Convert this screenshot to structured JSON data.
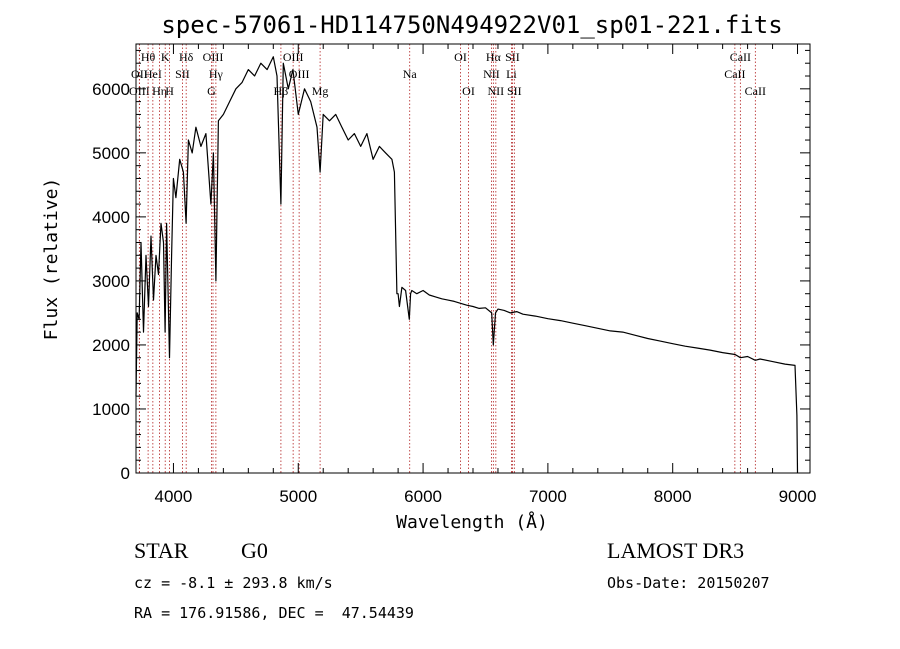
{
  "chart_data": {
    "type": "line",
    "title": "spec-57061-HD114750N494922V01_sp01-221.fits",
    "xlabel": "Wavelength (Å)",
    "ylabel": "Flux (relative)",
    "xlim": [
      3700,
      9100
    ],
    "ylim": [
      0,
      6700
    ],
    "xticks": [
      4000,
      5000,
      6000,
      7000,
      8000,
      9000
    ],
    "yticks": [
      0,
      1000,
      2000,
      3000,
      4000,
      5000,
      6000
    ],
    "series": [
      {
        "name": "spectrum",
        "x": [
          3700,
          3710,
          3725,
          3740,
          3760,
          3780,
          3800,
          3820,
          3840,
          3860,
          3880,
          3900,
          3920,
          3933,
          3945,
          3968,
          3985,
          4000,
          4020,
          4050,
          4080,
          4101,
          4120,
          4150,
          4180,
          4220,
          4260,
          4300,
          4320,
          4340,
          4360,
          4400,
          4450,
          4500,
          4550,
          4600,
          4650,
          4700,
          4750,
          4800,
          4830,
          4861,
          4880,
          4920,
          4957,
          5000,
          5050,
          5100,
          5150,
          5175,
          5200,
          5250,
          5300,
          5350,
          5400,
          5450,
          5500,
          5550,
          5600,
          5650,
          5700,
          5750,
          5770,
          5790,
          5800,
          5810,
          5830,
          5860,
          5890,
          5900,
          5910,
          5950,
          6000,
          6050,
          6100,
          6150,
          6200,
          6250,
          6300,
          6350,
          6400,
          6450,
          6500,
          6550,
          6563,
          6580,
          6600,
          6650,
          6700,
          6750,
          6800,
          6900,
          7000,
          7100,
          7200,
          7300,
          7400,
          7500,
          7600,
          7700,
          7800,
          7900,
          8000,
          8100,
          8200,
          8300,
          8400,
          8500,
          8542,
          8600,
          8662,
          8700,
          8800,
          8900,
          8980,
          8995,
          9000
        ],
        "y": [
          1200,
          2500,
          2400,
          3600,
          2200,
          3400,
          2600,
          3700,
          2700,
          3400,
          3100,
          3900,
          3600,
          2200,
          3900,
          1800,
          3400,
          4600,
          4300,
          4900,
          4700,
          3900,
          5200,
          5000,
          5400,
          5100,
          5300,
          4200,
          5000,
          3000,
          5500,
          5600,
          5800,
          6000,
          6100,
          6300,
          6200,
          6400,
          6300,
          6500,
          6200,
          4200,
          6400,
          6000,
          6300,
          5600,
          6000,
          5800,
          5400,
          4700,
          5600,
          5500,
          5600,
          5400,
          5200,
          5300,
          5100,
          5300,
          4900,
          5100,
          5000,
          4900,
          4700,
          2800,
          2800,
          2600,
          2900,
          2850,
          2400,
          2800,
          2850,
          2800,
          2850,
          2780,
          2750,
          2720,
          2700,
          2680,
          2650,
          2620,
          2600,
          2570,
          2580,
          2500,
          2000,
          2500,
          2560,
          2540,
          2500,
          2520,
          2480,
          2450,
          2410,
          2380,
          2340,
          2300,
          2260,
          2220,
          2200,
          2150,
          2100,
          2060,
          2020,
          1980,
          1950,
          1920,
          1880,
          1850,
          1800,
          1820,
          1760,
          1780,
          1740,
          1700,
          1680,
          900,
          0
        ]
      }
    ],
    "lines": [
      {
        "name": "OII",
        "x": 3727,
        "row": 1
      },
      {
        "name": "OIII",
        "x": 3727,
        "row": 2
      },
      {
        "name": "Hθ",
        "x": 3797,
        "row": 0
      },
      {
        "name": "HeI",
        "x": 3835,
        "row": 1
      },
      {
        "name": "Hη",
        "x": 3889,
        "row": 2
      },
      {
        "name": "K",
        "x": 3934,
        "row": 0
      },
      {
        "name": "H",
        "x": 3969,
        "row": 2
      },
      {
        "name": "SII",
        "x": 4072,
        "row": 1
      },
      {
        "name": "Hδ",
        "x": 4102,
        "row": 0
      },
      {
        "name": "OIII",
        "x": 4317,
        "row": 0
      },
      {
        "name": "Hγ",
        "x": 4340,
        "row": 1
      },
      {
        "name": "G",
        "x": 4305,
        "row": 2
      },
      {
        "name": "Hβ",
        "x": 4861,
        "row": 2
      },
      {
        "name": "OIII",
        "x": 4959,
        "row": 0
      },
      {
        "name": "OIII",
        "x": 5007,
        "row": 1
      },
      {
        "name": "Mg",
        "x": 5175,
        "row": 2
      },
      {
        "name": "Na",
        "x": 5893,
        "row": 1
      },
      {
        "name": "OI",
        "x": 6300,
        "row": 0
      },
      {
        "name": "OI",
        "x": 6364,
        "row": 2
      },
      {
        "name": "Hα",
        "x": 6563,
        "row": 0
      },
      {
        "name": "NII",
        "x": 6548,
        "row": 1
      },
      {
        "name": "NII",
        "x": 6583,
        "row": 2
      },
      {
        "name": "SII",
        "x": 6716,
        "row": 0
      },
      {
        "name": "Li",
        "x": 6708,
        "row": 1
      },
      {
        "name": "SII",
        "x": 6731,
        "row": 2
      },
      {
        "name": "CaII",
        "x": 8542,
        "row": 0
      },
      {
        "name": "CaII",
        "x": 8498,
        "row": 1
      },
      {
        "name": "CaII",
        "x": 8662,
        "row": 2
      }
    ]
  },
  "info": {
    "object_type": "STAR",
    "subclass": "G0",
    "survey": "LAMOST DR3",
    "cz": "cz = -8.1 ± 293.8 km/s",
    "obs_date": "Obs-Date: 20150207",
    "coords": "RA = 176.91586, DEC =  47.54439"
  },
  "colors": {
    "line_marker": "#b22222",
    "spectrum": "#000000"
  }
}
